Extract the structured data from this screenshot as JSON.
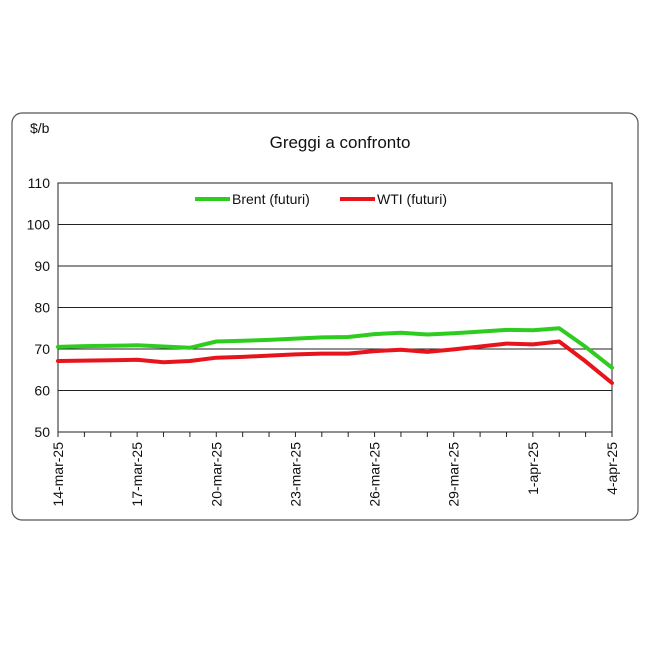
{
  "chart_data": {
    "type": "line",
    "title": "Greggi a confronto",
    "y_unit_label": "$/b",
    "x": [
      "14-mar-25",
      null,
      null,
      "17-mar-25",
      null,
      null,
      "20-mar-25",
      null,
      null,
      "23-mar-25",
      null,
      null,
      "26-mar-25",
      null,
      null,
      "29-mar-25",
      null,
      null,
      "1-apr-25",
      null,
      null,
      "4-apr-25"
    ],
    "series": [
      {
        "name": "Brent (futuri)",
        "color": "#2ecc1e",
        "values": [
          70.5,
          70.7,
          70.8,
          70.9,
          70.6,
          70.3,
          71.8,
          72.0,
          72.2,
          72.5,
          72.8,
          72.9,
          73.6,
          73.9,
          73.5,
          73.8,
          74.2,
          74.6,
          74.5,
          75.0,
          70.5,
          65.5
        ]
      },
      {
        "name": "WTI (futuri)",
        "color": "#e8141c",
        "values": [
          67.1,
          67.2,
          67.3,
          67.4,
          66.8,
          67.1,
          67.9,
          68.1,
          68.4,
          68.7,
          68.9,
          68.9,
          69.5,
          69.8,
          69.3,
          69.9,
          70.6,
          71.3,
          71.1,
          71.8,
          67.0,
          61.8
        ]
      }
    ],
    "ylim": [
      50,
      110
    ],
    "yticks": [
      50,
      60,
      70,
      80,
      90,
      100,
      110
    ],
    "grid": true,
    "legend": "top"
  }
}
